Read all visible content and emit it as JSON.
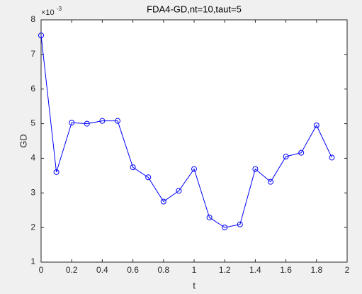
{
  "chart_data": {
    "type": "line",
    "title": "FDA4-GD,nt=10,taut=5",
    "xlabel": "t",
    "ylabel": "GD",
    "y_exponent": {
      "base": "×10",
      "power": "-3"
    },
    "x": [
      0,
      0.1,
      0.2,
      0.3,
      0.4,
      0.5,
      0.6,
      0.7,
      0.8,
      0.9,
      1.0,
      1.1,
      1.2,
      1.3,
      1.4,
      1.5,
      1.6,
      1.7,
      1.8,
      1.9
    ],
    "series": [
      {
        "name": "GD",
        "color": "#0000ff",
        "values": [
          7.55,
          3.6,
          5.03,
          5.0,
          5.08,
          5.08,
          3.74,
          3.45,
          2.75,
          3.06,
          3.69,
          2.29,
          2.0,
          2.09,
          3.69,
          3.32,
          4.05,
          4.16,
          4.95,
          4.02
        ]
      }
    ],
    "xlim": [
      0,
      2
    ],
    "xticks": [
      0,
      0.2,
      0.4,
      0.6,
      0.8,
      1,
      1.2,
      1.4,
      1.6,
      1.8,
      2
    ],
    "ylim": [
      1,
      8
    ],
    "yticks": [
      1,
      2,
      3,
      4,
      5,
      6,
      7,
      8
    ],
    "grid": false,
    "marker": "circle"
  }
}
